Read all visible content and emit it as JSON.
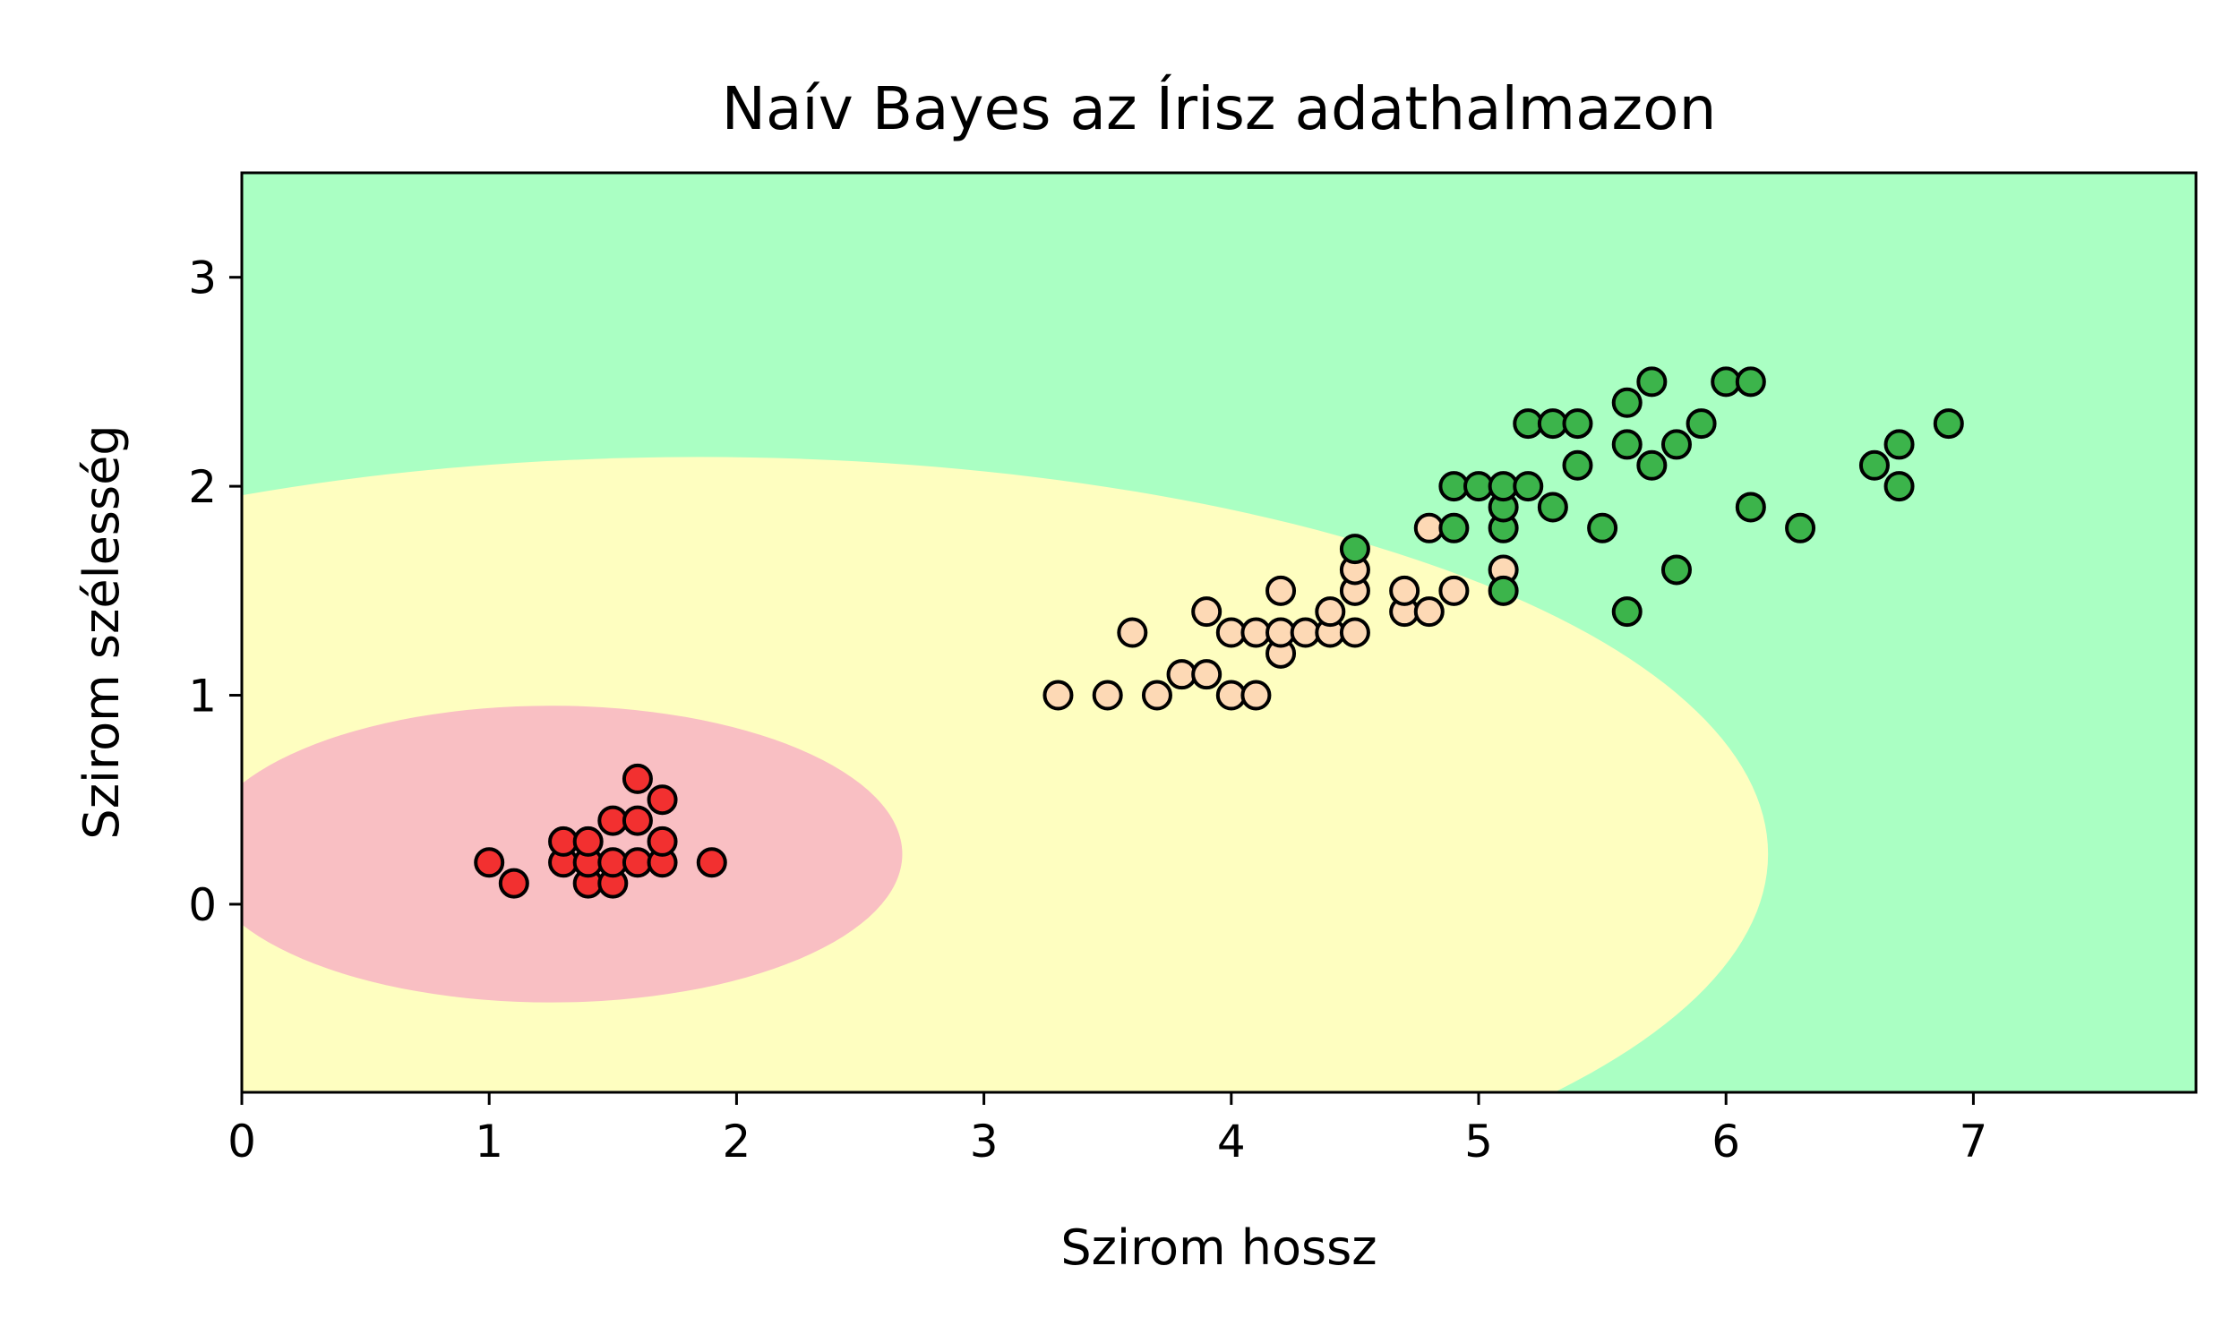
{
  "chart_data": {
    "type": "scatter",
    "title": "Naív Bayes az Írisz adathalmazon",
    "xlabel": "Szirom hossz",
    "ylabel": "Szirom szélesség",
    "xlim": [
      0,
      7.9
    ],
    "ylim": [
      -0.9,
      3.5
    ],
    "xticks": [
      0,
      1,
      2,
      3,
      4,
      5,
      6,
      7
    ],
    "yticks": [
      0,
      1,
      2,
      3
    ],
    "grid": false,
    "regions": [
      {
        "class": 0,
        "color": "#f9bfc3",
        "center": [
          1.25,
          0.24
        ],
        "semi_axes": [
          1.42,
          0.71
        ]
      },
      {
        "class": 1,
        "color": "#fefec0",
        "center": [
          1.85,
          0.24
        ],
        "semi_axes": [
          4.32,
          1.9
        ]
      },
      {
        "class": 2,
        "color": "#aaffc3"
      }
    ],
    "series": [
      {
        "color": "#f23030",
        "points": [
          [
            1.0,
            0.2
          ],
          [
            1.1,
            0.1
          ],
          [
            1.3,
            0.2
          ],
          [
            1.3,
            0.3
          ],
          [
            1.4,
            0.1
          ],
          [
            1.4,
            0.2
          ],
          [
            1.4,
            0.3
          ],
          [
            1.5,
            0.1
          ],
          [
            1.5,
            0.2
          ],
          [
            1.5,
            0.4
          ],
          [
            1.6,
            0.2
          ],
          [
            1.6,
            0.4
          ],
          [
            1.6,
            0.6
          ],
          [
            1.7,
            0.2
          ],
          [
            1.7,
            0.3
          ],
          [
            1.7,
            0.5
          ],
          [
            1.9,
            0.2
          ]
        ]
      },
      {
        "color": "#fdd9b5",
        "points": [
          [
            3.3,
            1.0
          ],
          [
            3.5,
            1.0
          ],
          [
            3.6,
            1.3
          ],
          [
            3.7,
            1.0
          ],
          [
            3.8,
            1.1
          ],
          [
            3.9,
            1.1
          ],
          [
            3.9,
            1.4
          ],
          [
            4.0,
            1.0
          ],
          [
            4.0,
            1.3
          ],
          [
            4.1,
            1.0
          ],
          [
            4.1,
            1.3
          ],
          [
            4.2,
            1.2
          ],
          [
            4.2,
            1.3
          ],
          [
            4.2,
            1.5
          ],
          [
            4.3,
            1.3
          ],
          [
            4.4,
            1.3
          ],
          [
            4.4,
            1.4
          ],
          [
            4.5,
            1.3
          ],
          [
            4.5,
            1.5
          ],
          [
            4.5,
            1.6
          ],
          [
            4.7,
            1.4
          ],
          [
            4.7,
            1.5
          ],
          [
            4.8,
            1.4
          ],
          [
            4.8,
            1.8
          ],
          [
            4.9,
            1.5
          ],
          [
            5.1,
            1.6
          ]
        ]
      },
      {
        "color": "#3cb44b",
        "points": [
          [
            4.5,
            1.7
          ],
          [
            4.9,
            1.8
          ],
          [
            4.9,
            2.0
          ],
          [
            5.0,
            2.0
          ],
          [
            5.1,
            1.5
          ],
          [
            5.1,
            1.8
          ],
          [
            5.1,
            1.9
          ],
          [
            5.1,
            2.0
          ],
          [
            5.2,
            2.0
          ],
          [
            5.2,
            2.3
          ],
          [
            5.3,
            1.9
          ],
          [
            5.3,
            2.3
          ],
          [
            5.4,
            2.1
          ],
          [
            5.4,
            2.3
          ],
          [
            5.5,
            1.8
          ],
          [
            5.6,
            1.4
          ],
          [
            5.6,
            2.2
          ],
          [
            5.6,
            2.4
          ],
          [
            5.7,
            2.1
          ],
          [
            5.7,
            2.5
          ],
          [
            5.8,
            1.6
          ],
          [
            5.8,
            2.2
          ],
          [
            5.9,
            2.3
          ],
          [
            6.0,
            2.5
          ],
          [
            6.1,
            1.9
          ],
          [
            6.1,
            2.5
          ],
          [
            6.3,
            1.8
          ],
          [
            6.6,
            2.1
          ],
          [
            6.7,
            2.0
          ],
          [
            6.7,
            2.2
          ],
          [
            6.9,
            2.3
          ]
        ]
      }
    ]
  }
}
